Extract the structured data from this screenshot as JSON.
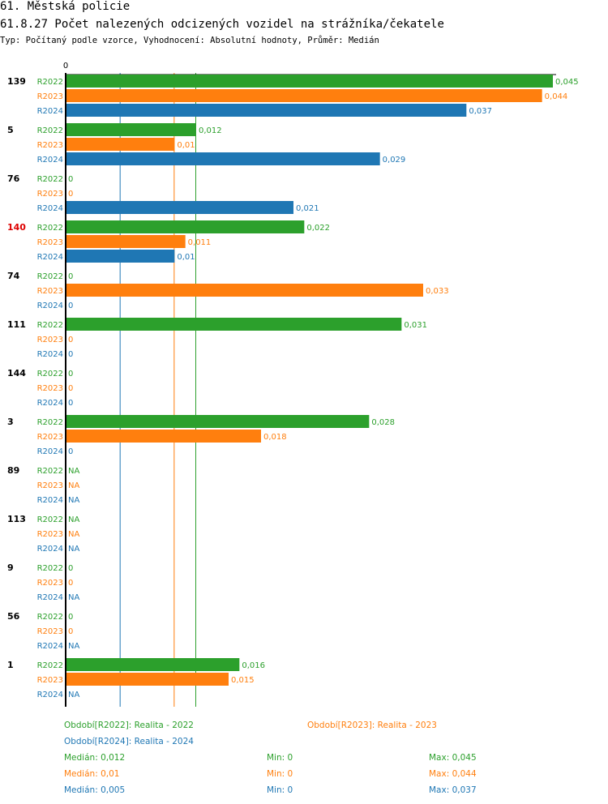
{
  "header": {
    "section": "61. Městská policie",
    "title": "61.8.27 Počet nalezených odcizených vozidel na strážníka/čekatele",
    "subtitle": "Typ: Počítaný podle vzorce, Vyhodnocení: Absolutní hodnoty, Průměr: Medián"
  },
  "colors": {
    "R2022": "#2ca02c",
    "R2023": "#ff7f0e",
    "R2024": "#1f77b4",
    "highlight": "#dd0000"
  },
  "chart_data": {
    "type": "bar",
    "orientation": "horizontal",
    "axis_zero_label": "0",
    "xlim": [
      0,
      0.045
    ],
    "series_names": [
      "R2022",
      "R2023",
      "R2024"
    ],
    "groups": [
      {
        "id": "139",
        "highlight": false,
        "bars": [
          {
            "s": "R2022",
            "v": 0.045,
            "label": "0,045"
          },
          {
            "s": "R2023",
            "v": 0.044,
            "label": "0,044"
          },
          {
            "s": "R2024",
            "v": 0.037,
            "label": "0,037"
          }
        ]
      },
      {
        "id": "5",
        "highlight": false,
        "bars": [
          {
            "s": "R2022",
            "v": 0.012,
            "label": "0,012"
          },
          {
            "s": "R2023",
            "v": 0.01,
            "label": "0,01"
          },
          {
            "s": "R2024",
            "v": 0.029,
            "label": "0,029"
          }
        ]
      },
      {
        "id": "76",
        "highlight": false,
        "bars": [
          {
            "s": "R2022",
            "v": 0,
            "label": "0"
          },
          {
            "s": "R2023",
            "v": 0,
            "label": "0"
          },
          {
            "s": "R2024",
            "v": 0.021,
            "label": "0,021"
          }
        ]
      },
      {
        "id": "140",
        "highlight": true,
        "bars": [
          {
            "s": "R2022",
            "v": 0.022,
            "label": "0,022"
          },
          {
            "s": "R2023",
            "v": 0.011,
            "label": "0,011"
          },
          {
            "s": "R2024",
            "v": 0.01,
            "label": "0,01"
          }
        ]
      },
      {
        "id": "74",
        "highlight": false,
        "bars": [
          {
            "s": "R2022",
            "v": 0,
            "label": "0"
          },
          {
            "s": "R2023",
            "v": 0.033,
            "label": "0,033"
          },
          {
            "s": "R2024",
            "v": 0,
            "label": "0"
          }
        ]
      },
      {
        "id": "111",
        "highlight": false,
        "bars": [
          {
            "s": "R2022",
            "v": 0.031,
            "label": "0,031"
          },
          {
            "s": "R2023",
            "v": 0,
            "label": "0"
          },
          {
            "s": "R2024",
            "v": 0,
            "label": "0"
          }
        ]
      },
      {
        "id": "144",
        "highlight": false,
        "bars": [
          {
            "s": "R2022",
            "v": 0,
            "label": "0"
          },
          {
            "s": "R2023",
            "v": 0,
            "label": "0"
          },
          {
            "s": "R2024",
            "v": 0,
            "label": "0"
          }
        ]
      },
      {
        "id": "3",
        "highlight": false,
        "bars": [
          {
            "s": "R2022",
            "v": 0.028,
            "label": "0,028"
          },
          {
            "s": "R2023",
            "v": 0.018,
            "label": "0,018"
          },
          {
            "s": "R2024",
            "v": 0,
            "label": "0"
          }
        ]
      },
      {
        "id": "89",
        "highlight": false,
        "bars": [
          {
            "s": "R2022",
            "v": null,
            "label": "NA"
          },
          {
            "s": "R2023",
            "v": null,
            "label": "NA"
          },
          {
            "s": "R2024",
            "v": null,
            "label": "NA"
          }
        ]
      },
      {
        "id": "113",
        "highlight": false,
        "bars": [
          {
            "s": "R2022",
            "v": null,
            "label": "NA"
          },
          {
            "s": "R2023",
            "v": null,
            "label": "NA"
          },
          {
            "s": "R2024",
            "v": null,
            "label": "NA"
          }
        ]
      },
      {
        "id": "9",
        "highlight": false,
        "bars": [
          {
            "s": "R2022",
            "v": 0,
            "label": "0"
          },
          {
            "s": "R2023",
            "v": 0,
            "label": "0"
          },
          {
            "s": "R2024",
            "v": null,
            "label": "NA"
          }
        ]
      },
      {
        "id": "56",
        "highlight": false,
        "bars": [
          {
            "s": "R2022",
            "v": 0,
            "label": "0"
          },
          {
            "s": "R2023",
            "v": 0,
            "label": "0"
          },
          {
            "s": "R2024",
            "v": null,
            "label": "NA"
          }
        ]
      },
      {
        "id": "1",
        "highlight": false,
        "bars": [
          {
            "s": "R2022",
            "v": 0.016,
            "label": "0,016"
          },
          {
            "s": "R2023",
            "v": 0.015,
            "label": "0,015"
          },
          {
            "s": "R2024",
            "v": null,
            "label": "NA"
          }
        ]
      }
    ],
    "median_lines": [
      {
        "s": "R2022",
        "v": 0.012
      },
      {
        "s": "R2023",
        "v": 0.01
      },
      {
        "s": "R2024",
        "v": 0.005
      }
    ],
    "legend": [
      {
        "s": "R2022",
        "text": "Období[R2022]: Realita - 2022"
      },
      {
        "s": "R2023",
        "text": "Období[R2023]: Realita - 2023"
      },
      {
        "s": "R2024",
        "text": "Období[R2024]: Realita - 2024"
      }
    ],
    "stats": [
      {
        "s": "R2022",
        "median": "Medián: 0,012",
        "min": "Min: 0",
        "max": "Max: 0,045"
      },
      {
        "s": "R2023",
        "median": "Medián: 0,01",
        "min": "Min: 0",
        "max": "Max: 0,044"
      },
      {
        "s": "R2024",
        "median": "Medián: 0,005",
        "min": "Min: 0",
        "max": "Max: 0,037"
      }
    ]
  }
}
